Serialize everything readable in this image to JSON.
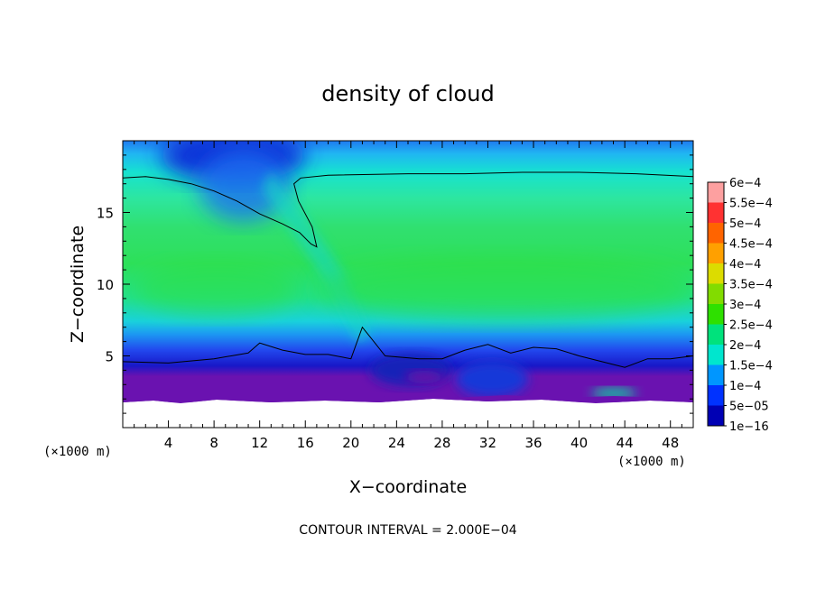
{
  "chart_data": {
    "type": "heatmap",
    "title": "density of cloud",
    "xlabel": "X−coordinate",
    "ylabel": "Z−coordinate",
    "x_unit_label": "(×1000 m)",
    "y_unit_label": "(×1000 m)",
    "x_ticks": [
      4,
      8,
      12,
      16,
      20,
      24,
      28,
      32,
      36,
      40,
      44,
      48
    ],
    "y_ticks": [
      5,
      10,
      15
    ],
    "xlim": [
      0,
      50
    ],
    "ylim": [
      0,
      20
    ],
    "footer_note": "CONTOUR INTERVAL = 2.000E−04",
    "colorbar": {
      "labels": [
        "6e−4",
        "5.5e−4",
        "5e−4",
        "4.5e−4",
        "4e−4",
        "3.5e−4",
        "3e−4",
        "2.5e−4",
        "2e−4",
        "1.5e−4",
        "1e−4",
        "5e−05",
        "1e−16"
      ],
      "colors": [
        "#fda0a0",
        "#ff3232",
        "#ff6400",
        "#ffa000",
        "#dcdc00",
        "#82dc00",
        "#2ee000",
        "#00e27c",
        "#00e6ce",
        "#0096ff",
        "#0032ff",
        "#0000b4",
        "#7000a8"
      ]
    },
    "contour_line_level": "2e−4",
    "contour_upper_z": [
      [
        0,
        17.4
      ],
      [
        2,
        17.5
      ],
      [
        4,
        17.3
      ],
      [
        6,
        17
      ],
      [
        8,
        16.5
      ],
      [
        10,
        15.8
      ],
      [
        12,
        14.9
      ],
      [
        14,
        14.2
      ],
      [
        15.5,
        13.6
      ],
      [
        16.5,
        12.8
      ],
      [
        17,
        12.6
      ],
      [
        16.6,
        14
      ],
      [
        15.4,
        15.8
      ],
      [
        15,
        17
      ],
      [
        15.6,
        17.4
      ],
      [
        18,
        17.6
      ],
      [
        25,
        17.7
      ],
      [
        30,
        17.7
      ],
      [
        35,
        17.8
      ],
      [
        40,
        17.8
      ],
      [
        45,
        17.7
      ],
      [
        50,
        17.5
      ]
    ],
    "contour_lower_z": [
      [
        0,
        4.6
      ],
      [
        4,
        4.5
      ],
      [
        8,
        4.8
      ],
      [
        11,
        5.2
      ],
      [
        12,
        5.9
      ],
      [
        14,
        5.4
      ],
      [
        16,
        5.1
      ],
      [
        18,
        5.1
      ],
      [
        20,
        4.8
      ],
      [
        21,
        7
      ],
      [
        22,
        6
      ],
      [
        23,
        5
      ],
      [
        26,
        4.8
      ],
      [
        28,
        4.8
      ],
      [
        30,
        5.4
      ],
      [
        32,
        5.8
      ],
      [
        34,
        5.2
      ],
      [
        36,
        5.6
      ],
      [
        38,
        5.5
      ],
      [
        40,
        5
      ],
      [
        42,
        4.6
      ],
      [
        44,
        4.2
      ],
      [
        46,
        4.8
      ],
      [
        48,
        4.8
      ],
      [
        50,
        5
      ]
    ],
    "grid": false,
    "legend": "colorbar-right"
  }
}
